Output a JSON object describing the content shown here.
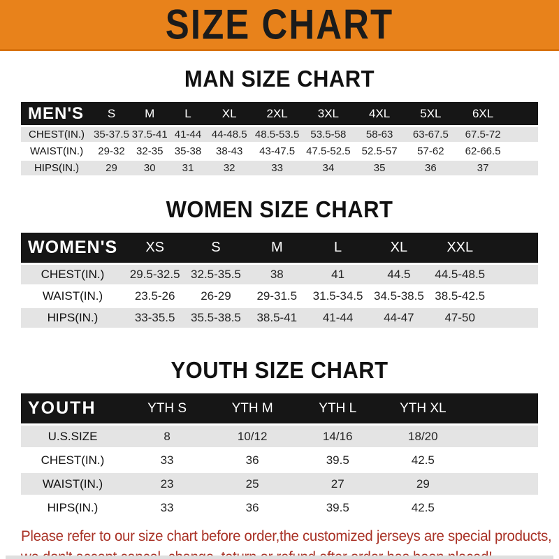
{
  "banner": {
    "title": "SIZE CHART",
    "bg_color": "#E8821B",
    "text_color": "#1B1B1B"
  },
  "colors": {
    "table_header_bg": "#161616",
    "table_header_text": "#FFFFFF",
    "row_stripe": "#E4E4E4",
    "footer_text": "#A93226"
  },
  "sections": [
    {
      "heading": "MAN SIZE CHART",
      "table": {
        "label": "MEN'S",
        "columns": [
          "S",
          "M",
          "L",
          "XL",
          "2XL",
          "3XL",
          "4XL",
          "5XL",
          "6XL"
        ],
        "rows": [
          {
            "label": "CHEST(IN.)",
            "values": [
              "35-37.5",
              "37.5-41",
              "41-44",
              "44-48.5",
              "48.5-53.5",
              "53.5-58",
              "58-63",
              "63-67.5",
              "67.5-72"
            ]
          },
          {
            "label": "WAIST(IN.)",
            "values": [
              "29-32",
              "32-35",
              "35-38",
              "38-43",
              "43-47.5",
              "47.5-52.5",
              "52.5-57",
              "57-62",
              "62-66.5"
            ]
          },
          {
            "label": "HIPS(IN.)",
            "values": [
              "29",
              "30",
              "31",
              "32",
              "33",
              "34",
              "35",
              "36",
              "37"
            ]
          }
        ]
      }
    },
    {
      "heading": "WOMEN SIZE CHART",
      "table": {
        "label": "WOMEN'S",
        "columns": [
          "XS",
          "S",
          "M",
          "L",
          "XL",
          "XXL"
        ],
        "rows": [
          {
            "label": "CHEST(IN.)",
            "values": [
              "29.5-32.5",
              "32.5-35.5",
              "38",
              "41",
              "44.5",
              "44.5-48.5"
            ]
          },
          {
            "label": "WAIST(IN.)",
            "values": [
              "23.5-26",
              "26-29",
              "29-31.5",
              "31.5-34.5",
              "34.5-38.5",
              "38.5-42.5"
            ]
          },
          {
            "label": "HIPS(IN.)",
            "values": [
              "33-35.5",
              "35.5-38.5",
              "38.5-41",
              "41-44",
              "44-47",
              "47-50"
            ]
          }
        ]
      }
    },
    {
      "heading": "YOUTH SIZE CHART",
      "table": {
        "label": "YOUTH",
        "columns": [
          "YTH S",
          "YTH M",
          "YTH L",
          "YTH XL"
        ],
        "rows": [
          {
            "label": "U.S.SIZE",
            "values": [
              "8",
              "10/12",
              "14/16",
              "18/20"
            ]
          },
          {
            "label": "CHEST(IN.)",
            "values": [
              "33",
              "36",
              "39.5",
              "42.5"
            ]
          },
          {
            "label": "WAIST(IN.)",
            "values": [
              "23",
              "25",
              "27",
              "29"
            ]
          },
          {
            "label": "HIPS(IN.)",
            "values": [
              "33",
              "36",
              "39.5",
              "42.5"
            ]
          }
        ]
      }
    }
  ],
  "footer": {
    "line1": "Please refer to our size chart before order,the customized jerseys are special products,",
    "line2": "we don't accept cancel, change, teturn or refund after order has been placed!"
  }
}
